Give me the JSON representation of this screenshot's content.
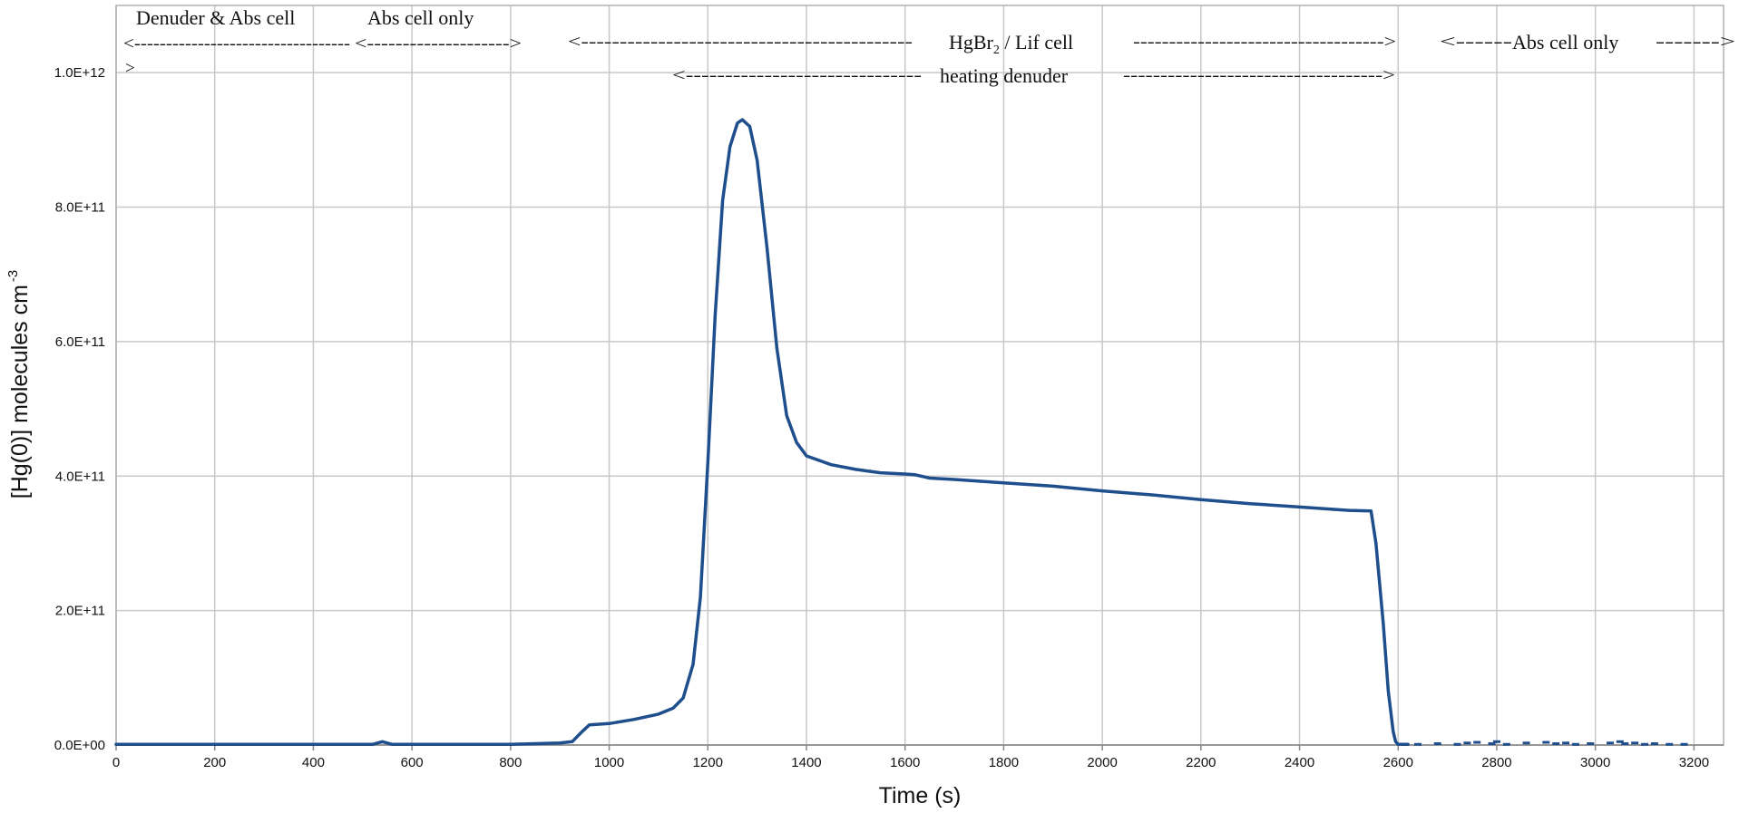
{
  "chart_data": {
    "type": "line",
    "xlabel": "Time (s)",
    "ylabel": "[Hg(0)] molecules cm",
    "ylabel_superscript": "-3",
    "xlim": [
      0,
      3260
    ],
    "ylim": [
      0,
      1100000000000.0
    ],
    "grid": true,
    "x_ticks": [
      0,
      200,
      400,
      600,
      800,
      1000,
      1200,
      1400,
      1600,
      1800,
      2000,
      2200,
      2400,
      2600,
      2800,
      3000,
      3200
    ],
    "x_tick_labels": [
      "0",
      "200",
      "400",
      "600",
      "800",
      "1000",
      "1200",
      "1400",
      "1600",
      "1800",
      "2000",
      "2200",
      "2400",
      "2600",
      "2800",
      "3000",
      "3200"
    ],
    "y_ticks": [
      0,
      200000000000.0,
      400000000000.0,
      600000000000.0,
      800000000000.0,
      1000000000000.0
    ],
    "y_tick_labels": [
      "0.0E+00",
      "2.0E+11",
      "4.0E+11",
      "6.0E+11",
      "8.0E+11",
      "1.0E+12"
    ],
    "series": [
      {
        "color": "#1f4e8c",
        "x": [
          0,
          200,
          400,
          520,
          540,
          560,
          700,
          800,
          850,
          900,
          925,
          945,
          960,
          1000,
          1050,
          1100,
          1130,
          1150,
          1170,
          1185,
          1200,
          1215,
          1230,
          1245,
          1260,
          1270,
          1285,
          1300,
          1320,
          1340,
          1360,
          1380,
          1400,
          1450,
          1500,
          1550,
          1600,
          1620,
          1650,
          1700,
          1800,
          1900,
          2000,
          2100,
          2200,
          2300,
          2400,
          2500,
          2545,
          2555,
          2570,
          2580,
          2590,
          2595,
          2600,
          2610,
          2620
        ],
        "y": [
          1000000000.0,
          1000000000.0,
          1000000000.0,
          1000000000.0,
          5000000000.0,
          1000000000.0,
          1000000000.0,
          1000000000.0,
          2000000000.0,
          3000000000.0,
          5000000000.0,
          20000000000.0,
          30000000000.0,
          32000000000.0,
          38000000000.0,
          46000000000.0,
          55000000000.0,
          70000000000.0,
          120000000000.0,
          220000000000.0,
          420000000000.0,
          640000000000.0,
          810000000000.0,
          890000000000.0,
          925000000000.0,
          930000000000.0,
          920000000000.0,
          870000000000.0,
          740000000000.0,
          590000000000.0,
          490000000000.0,
          450000000000.0,
          430000000000.0,
          417000000000.0,
          410000000000.0,
          405000000000.0,
          403000000000.0,
          402000000000.0,
          397000000000.0,
          395000000000.0,
          390000000000.0,
          385000000000.0,
          378000000000.0,
          372000000000.0,
          365000000000.0,
          359000000000.0,
          354000000000.0,
          349000000000.0,
          348000000000.0,
          300000000000.0,
          180000000000.0,
          80000000000.0,
          20000000000.0,
          5000000000.0,
          1000000000.0,
          1000000000.0,
          1000000000.0
        ]
      },
      {
        "color": "#1f4e8c",
        "style": "scatter-noise",
        "x": [
          2640,
          2680,
          2720,
          2740,
          2760,
          2790,
          2800,
          2820,
          2860,
          2900,
          2920,
          2940,
          2960,
          2990,
          3030,
          3050,
          3060,
          3080,
          3100,
          3120,
          3150,
          3180
        ],
        "y": [
          1000000000.0,
          2000000000.0,
          1000000000.0,
          3000000000.0,
          4000000000.0,
          2000000000.0,
          5000000000.0,
          1000000000.0,
          3000000000.0,
          4000000000.0,
          2000000000.0,
          3000000000.0,
          1000000000.0,
          2000000000.0,
          3000000000.0,
          5000000000.0,
          2000000000.0,
          3000000000.0,
          1000000000.0,
          2000000000.0,
          1000000000.0,
          1000000000.0
        ]
      }
    ],
    "annotations": [
      {
        "label": "Denuder & Abs cell",
        "arrow": "<----------------------------------"
      },
      {
        "arrow_tail": ">"
      },
      {
        "label": "Abs cell only",
        "arrow": "<-------------------->"
      },
      {
        "arrow_left": "<-------------------------------------------",
        "label": "HgBr",
        "sub": "2",
        "label_rest": " / Lif cell",
        "arrow_right": "----------------------------------->"
      },
      {
        "arrow_left": "<------------------------------",
        "label": "heating denuder",
        "arrow_right": "----------------------------------->"
      },
      {
        "arrow_left": "<------",
        "label": "Abs cell only",
        "arrow_right": "------->"
      }
    ]
  }
}
